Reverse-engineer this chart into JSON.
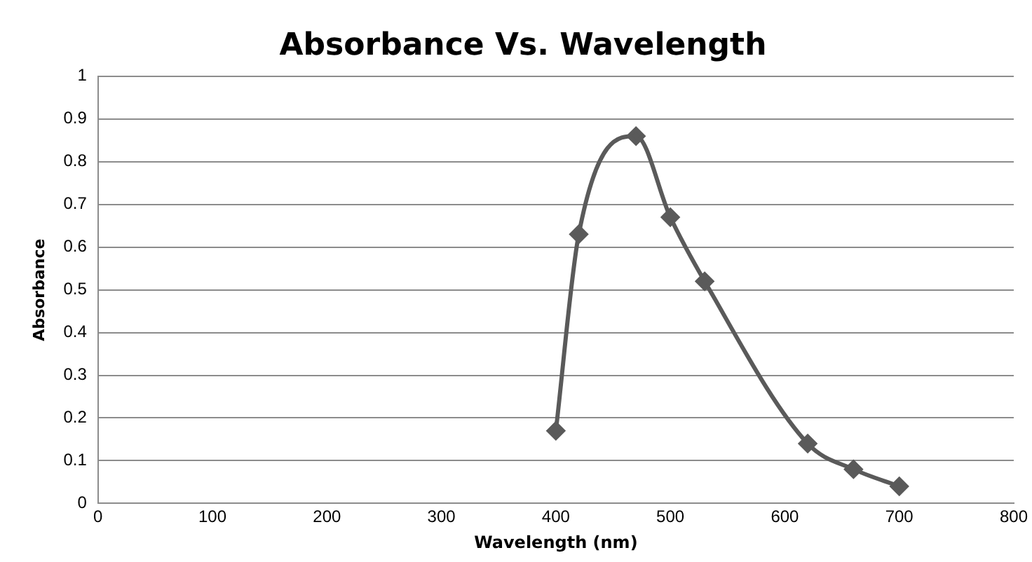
{
  "chart_data": {
    "type": "line",
    "title": "Absorbance Vs. Wavelength",
    "xlabel": "Wavelength (nm)",
    "ylabel": "Absorbance",
    "x": [
      400,
      420,
      470,
      500,
      530,
      620,
      660,
      700
    ],
    "series": [
      {
        "color": "#5a5a5a",
        "values": [
          0.17,
          0.63,
          0.86,
          0.67,
          0.52,
          0.14,
          0.08,
          0.04
        ]
      }
    ],
    "xlim": [
      0,
      800
    ],
    "xticks": [
      0,
      100,
      200,
      300,
      400,
      500,
      600,
      700,
      800
    ],
    "ylim": [
      0,
      1
    ],
    "yticks": [
      0,
      0.1,
      0.2,
      0.3,
      0.4,
      0.5,
      0.6,
      0.7,
      0.8,
      0.9,
      1
    ],
    "grid": "y",
    "legend": false,
    "marker": "diamond",
    "line_style": "solid"
  }
}
